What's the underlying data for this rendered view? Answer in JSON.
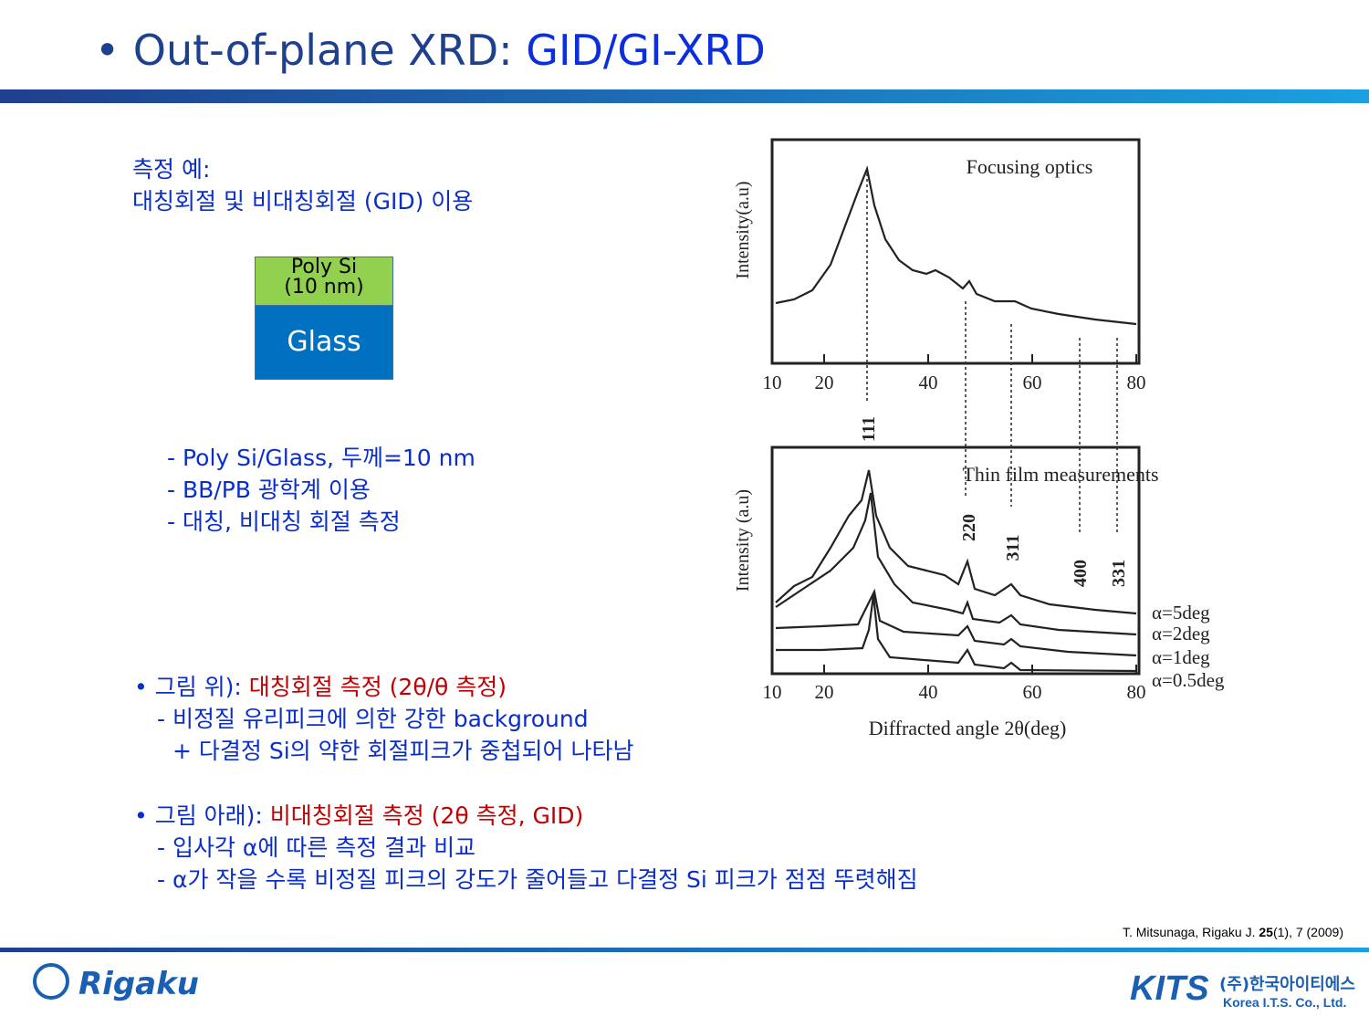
{
  "header": {
    "title_prefix": "Out-of-plane XRD: ",
    "title_highlight": "GID/GI-XRD"
  },
  "example": {
    "line1": "측정 예:",
    "line2": "대칭회절 및 비대칭회절 (GID) 이용"
  },
  "stack": {
    "top_line1": "Poly Si",
    "top_line2": "(10 nm)",
    "bottom": "Glass"
  },
  "notes": [
    "- Poly Si/Glass, 두께=10 nm",
    "- BB/PB 광학계 이용",
    "- 대칭, 비대칭 회절 측정"
  ],
  "figure": {
    "top_title": "Focusing optics",
    "top_ylabel": "Intensity(a.u)",
    "bottom_title": "Thin film measurements",
    "bottom_ylabel": "Intensity (a.u)",
    "xlabel": "Diffracted angle 2θ(deg)",
    "xlim": [
      10,
      80
    ],
    "xticks": [
      10,
      20,
      40,
      60,
      80
    ],
    "peaks": [
      "111",
      "220",
      "311",
      "400",
      "331"
    ],
    "series": [
      "α=5deg",
      "α=2deg",
      "α=1deg",
      "α=0.5deg"
    ]
  },
  "bullets": [
    {
      "lead": "그림 위): ",
      "highlight": "대칭회절 측정 (2θ/θ 측정)",
      "lines": [
        "- 비정질 유리피크에 의한 강한 background",
        "+ 다결정 Si의 약한 회절피크가 중첩되어 나타남"
      ]
    },
    {
      "lead": "그림 아래): ",
      "highlight": "비대칭회절 측정 (2θ 측정, GID)",
      "lines": [
        "- 입사각 α에 따른 측정 결과 비교",
        "- α가 작을 수록 비정질 피크의 강도가 줄어들고 다결정 Si 피크가 점점 뚜렷해짐"
      ]
    }
  ],
  "citation": {
    "before": "T. Mitsunaga, Rigaku J. ",
    "volume": "25",
    "after": "(1), 7 (2009)"
  },
  "footer": {
    "left_logo": "Rigaku",
    "right_logo": "KITS",
    "company_ko": "(주)한국아이티에스",
    "company_en": "Korea I.T.S. Co., Ltd."
  }
}
